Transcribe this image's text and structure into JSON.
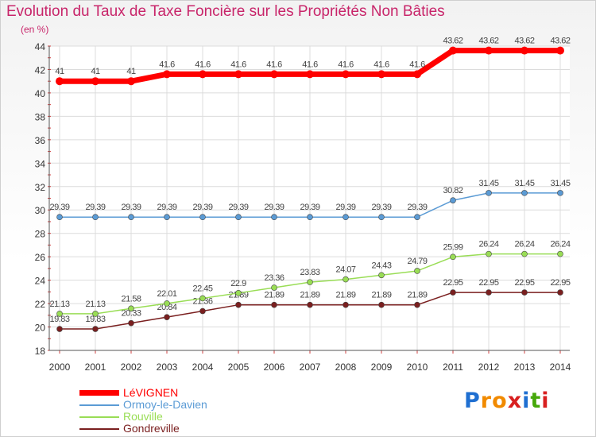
{
  "chart_data": {
    "type": "line",
    "title": "Evolution du Taux de Taxe Foncière sur les Propriétés Non Bâties",
    "ylabel": "(en %)",
    "xlabel": "",
    "ylim": [
      18,
      44
    ],
    "yticks": [
      18,
      20,
      22,
      24,
      26,
      28,
      30,
      32,
      34,
      36,
      38,
      40,
      42,
      44
    ],
    "categories": [
      "2000",
      "2001",
      "2002",
      "2003",
      "2004",
      "2005",
      "2006",
      "2007",
      "2008",
      "2009",
      "2010",
      "2011",
      "2012",
      "2013",
      "2014"
    ],
    "series": [
      {
        "name": "LéVIGNEN",
        "color": "#ff0000",
        "values": [
          41,
          41,
          41,
          41.6,
          41.6,
          41.6,
          41.6,
          41.6,
          41.6,
          41.6,
          41.6,
          43.62,
          43.62,
          43.62,
          43.62
        ],
        "labels": [
          "41",
          "41",
          "41",
          "41.6",
          "41.6",
          "41.6",
          "41.6",
          "41.6",
          "41.6",
          "41.6",
          "41.6",
          "43.62",
          "43.62",
          "43.62",
          "43.62"
        ]
      },
      {
        "name": "Ormoy-le-Davien",
        "color": "#5b9bd5",
        "values": [
          29.39,
          29.39,
          29.39,
          29.39,
          29.39,
          29.39,
          29.39,
          29.39,
          29.39,
          29.39,
          29.39,
          30.82,
          31.45,
          31.45,
          31.45
        ],
        "labels": [
          "29.39",
          "29.39",
          "29.39",
          "29.39",
          "29.39",
          "29.39",
          "29.39",
          "29.39",
          "29.39",
          "29.39",
          "29.39",
          "30.82",
          "31.45",
          "31.45",
          "31.45"
        ]
      },
      {
        "name": "Rouville",
        "color": "#99dd55",
        "values": [
          21.13,
          21.13,
          21.58,
          22.01,
          22.45,
          22.9,
          23.36,
          23.83,
          24.07,
          24.43,
          24.79,
          25.99,
          26.24,
          26.24,
          26.24
        ],
        "labels": [
          "21.13",
          "21.13",
          "21.58",
          "22.01",
          "22.45",
          "22.9",
          "23.36",
          "23.83",
          "24.07",
          "24.43",
          "24.79",
          "25.99",
          "26.24",
          "26.24",
          "26.24"
        ]
      },
      {
        "name": "Gondreville",
        "color": "#7a1f1f",
        "values": [
          19.83,
          19.83,
          20.33,
          20.84,
          21.36,
          21.89,
          21.89,
          21.89,
          21.89,
          21.89,
          21.89,
          22.95,
          22.95,
          22.95,
          22.95
        ],
        "labels": [
          "19.83",
          "19.83",
          "20.33",
          "20.84",
          "21.36",
          "21.89",
          "21.89",
          "21.89",
          "21.89",
          "21.89",
          "21.89",
          "22.95",
          "22.95",
          "22.95",
          "22.95"
        ]
      }
    ]
  },
  "logo": {
    "text": "Proxiti"
  }
}
